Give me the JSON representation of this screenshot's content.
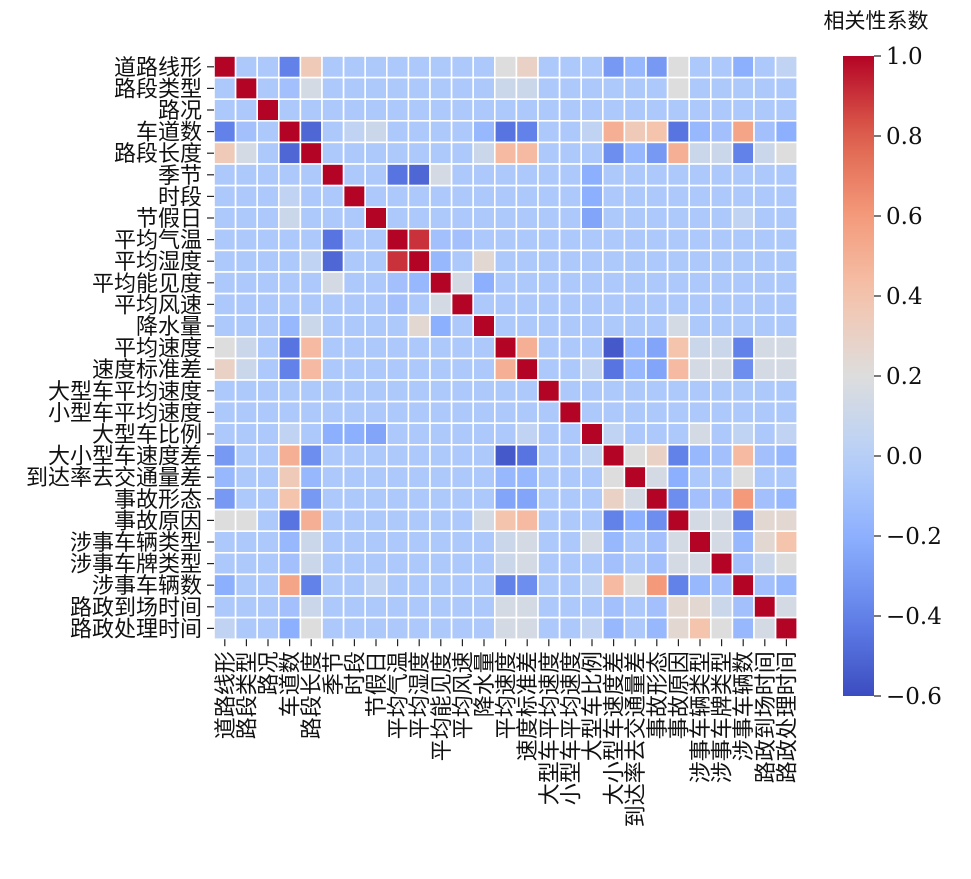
{
  "chart_data": {
    "type": "heatmap",
    "title": "",
    "colorbar_label": "相关性系数",
    "vmin": -0.6,
    "vmax": 1.0,
    "colorbar_ticks": [
      1.0,
      0.8,
      0.6,
      0.4,
      0.2,
      0.0,
      -0.2,
      -0.4,
      -0.6
    ],
    "colorbar_tick_labels": [
      "1.0",
      "0.8",
      "0.6",
      "0.4",
      "0.2",
      "0.0",
      "−0.2",
      "−0.4",
      "−0.6"
    ],
    "variables": [
      "道路线形",
      "路段类型",
      "路况",
      "车道数",
      "路段长度",
      "季节",
      "时段",
      "节假日",
      "平均气温",
      "平均湿度",
      "平均能见度",
      "平均风速",
      "降水量",
      "平均速度",
      "速度标准差",
      "大型车平均速度",
      "小型车平均速度",
      "大型车比例",
      "大小型车速度差",
      "到达率去交通量差",
      "事故形态",
      "事故原因",
      "涉事车辆类型",
      "涉事车牌类型",
      "涉事车辆数",
      "路政到场时间",
      "路政处理时间"
    ],
    "matrix": [
      [
        1.0,
        -0.05,
        -0.05,
        -0.4,
        0.35,
        -0.05,
        -0.05,
        -0.05,
        -0.05,
        -0.05,
        -0.05,
        -0.05,
        -0.05,
        0.2,
        0.3,
        -0.05,
        -0.05,
        -0.05,
        -0.3,
        -0.15,
        -0.3,
        0.2,
        -0.05,
        -0.05,
        -0.2,
        -0.05,
        0.05
      ],
      [
        -0.05,
        1.0,
        -0.05,
        -0.1,
        0.15,
        -0.05,
        -0.05,
        -0.05,
        -0.05,
        -0.05,
        -0.05,
        -0.05,
        -0.05,
        0.1,
        0.1,
        -0.05,
        -0.05,
        -0.05,
        -0.05,
        -0.05,
        -0.05,
        0.2,
        -0.05,
        -0.05,
        -0.05,
        -0.05,
        -0.05
      ],
      [
        -0.05,
        -0.05,
        1.0,
        -0.05,
        -0.05,
        -0.05,
        -0.05,
        -0.05,
        -0.05,
        -0.05,
        -0.05,
        -0.05,
        -0.05,
        -0.05,
        -0.05,
        -0.05,
        -0.05,
        -0.05,
        -0.05,
        -0.05,
        -0.05,
        -0.05,
        -0.05,
        -0.05,
        -0.05,
        -0.05,
        -0.05
      ],
      [
        -0.4,
        -0.1,
        -0.05,
        1.0,
        -0.5,
        -0.05,
        0.05,
        0.1,
        -0.05,
        -0.05,
        -0.05,
        -0.05,
        -0.15,
        -0.45,
        -0.4,
        -0.05,
        -0.05,
        0.05,
        0.5,
        0.35,
        0.4,
        -0.45,
        -0.15,
        -0.1,
        0.55,
        -0.1,
        -0.2
      ],
      [
        0.35,
        0.15,
        -0.05,
        -0.5,
        1.0,
        -0.05,
        -0.05,
        -0.05,
        -0.05,
        -0.05,
        -0.05,
        -0.05,
        0.1,
        0.45,
        0.45,
        -0.05,
        -0.05,
        -0.05,
        -0.35,
        -0.15,
        -0.3,
        0.5,
        0.1,
        0.1,
        -0.4,
        0.1,
        0.2
      ],
      [
        -0.05,
        -0.05,
        -0.05,
        -0.05,
        -0.05,
        1.0,
        -0.05,
        -0.05,
        -0.45,
        -0.5,
        0.15,
        -0.05,
        -0.05,
        -0.05,
        -0.05,
        -0.05,
        -0.05,
        -0.2,
        -0.05,
        -0.05,
        -0.05,
        -0.05,
        -0.05,
        -0.05,
        -0.05,
        -0.05,
        -0.05
      ],
      [
        -0.05,
        -0.05,
        -0.05,
        0.05,
        -0.05,
        -0.05,
        1.0,
        -0.05,
        -0.05,
        -0.05,
        -0.05,
        -0.05,
        -0.05,
        -0.05,
        -0.05,
        -0.05,
        -0.05,
        -0.2,
        -0.05,
        -0.05,
        -0.05,
        -0.05,
        -0.05,
        -0.05,
        -0.05,
        -0.05,
        -0.05
      ],
      [
        -0.05,
        -0.05,
        -0.05,
        0.1,
        -0.05,
        -0.05,
        -0.05,
        1.0,
        -0.05,
        -0.05,
        -0.05,
        -0.05,
        -0.05,
        -0.05,
        -0.05,
        -0.05,
        -0.05,
        -0.25,
        -0.05,
        -0.05,
        -0.05,
        -0.05,
        -0.05,
        -0.05,
        0.05,
        -0.05,
        -0.05
      ],
      [
        -0.05,
        -0.05,
        -0.05,
        -0.05,
        -0.05,
        -0.45,
        -0.05,
        -0.05,
        1.0,
        0.9,
        -0.1,
        -0.1,
        -0.05,
        -0.05,
        -0.05,
        -0.05,
        -0.05,
        -0.05,
        -0.05,
        -0.05,
        -0.05,
        -0.05,
        -0.05,
        -0.05,
        -0.05,
        -0.05,
        -0.05
      ],
      [
        -0.05,
        -0.05,
        -0.05,
        -0.05,
        0.05,
        -0.5,
        -0.05,
        -0.05,
        0.9,
        1.0,
        -0.15,
        -0.05,
        0.25,
        -0.05,
        -0.05,
        -0.05,
        -0.05,
        -0.05,
        -0.05,
        -0.05,
        -0.05,
        -0.05,
        -0.05,
        -0.05,
        -0.05,
        -0.05,
        -0.05
      ],
      [
        -0.05,
        -0.05,
        -0.05,
        -0.05,
        -0.05,
        0.15,
        -0.05,
        -0.05,
        -0.1,
        -0.15,
        1.0,
        0.15,
        -0.2,
        -0.05,
        -0.05,
        -0.05,
        -0.05,
        -0.05,
        -0.05,
        -0.05,
        -0.05,
        -0.05,
        -0.05,
        -0.05,
        -0.05,
        -0.05,
        -0.05
      ],
      [
        -0.05,
        -0.05,
        -0.05,
        -0.05,
        -0.05,
        -0.05,
        -0.05,
        -0.05,
        -0.1,
        -0.05,
        0.15,
        1.0,
        -0.05,
        -0.05,
        -0.05,
        -0.05,
        -0.05,
        -0.05,
        -0.05,
        -0.05,
        -0.05,
        -0.05,
        -0.05,
        -0.05,
        -0.05,
        -0.05,
        -0.05
      ],
      [
        -0.05,
        -0.05,
        -0.05,
        -0.15,
        0.1,
        -0.05,
        -0.05,
        -0.05,
        -0.05,
        0.25,
        -0.2,
        -0.05,
        1.0,
        -0.05,
        -0.05,
        -0.05,
        -0.05,
        -0.05,
        -0.05,
        -0.05,
        -0.05,
        0.15,
        -0.05,
        -0.05,
        -0.05,
        -0.05,
        -0.05
      ],
      [
        0.2,
        0.1,
        -0.05,
        -0.45,
        0.45,
        -0.05,
        -0.05,
        -0.05,
        -0.05,
        -0.05,
        -0.05,
        -0.05,
        -0.05,
        1.0,
        0.5,
        -0.05,
        -0.05,
        -0.05,
        -0.55,
        -0.15,
        -0.25,
        0.4,
        0.1,
        0.1,
        -0.4,
        0.15,
        0.15
      ],
      [
        0.3,
        0.1,
        -0.05,
        -0.4,
        0.45,
        -0.05,
        -0.05,
        -0.05,
        -0.05,
        -0.05,
        -0.05,
        -0.05,
        -0.05,
        0.5,
        1.0,
        -0.05,
        -0.05,
        0.05,
        -0.45,
        -0.15,
        -0.25,
        0.45,
        0.15,
        0.15,
        -0.35,
        0.15,
        0.15
      ],
      [
        -0.05,
        -0.05,
        -0.05,
        -0.05,
        -0.05,
        -0.05,
        -0.05,
        -0.05,
        -0.05,
        -0.05,
        -0.05,
        -0.05,
        -0.05,
        -0.05,
        -0.05,
        1.0,
        -0.05,
        -0.05,
        -0.05,
        -0.05,
        -0.05,
        -0.05,
        -0.05,
        -0.05,
        -0.05,
        -0.05,
        -0.05
      ],
      [
        -0.05,
        -0.05,
        -0.05,
        -0.05,
        -0.05,
        -0.05,
        -0.05,
        -0.05,
        -0.05,
        -0.05,
        -0.05,
        -0.05,
        -0.05,
        -0.05,
        -0.05,
        -0.05,
        1.0,
        -0.05,
        -0.05,
        -0.05,
        -0.05,
        -0.05,
        -0.05,
        -0.05,
        -0.05,
        -0.05,
        -0.05
      ],
      [
        -0.05,
        -0.05,
        -0.05,
        0.05,
        -0.05,
        -0.2,
        -0.2,
        -0.25,
        -0.05,
        -0.05,
        -0.05,
        -0.05,
        -0.05,
        -0.05,
        0.05,
        -0.05,
        -0.05,
        1.0,
        0.05,
        -0.05,
        -0.05,
        -0.05,
        0.15,
        -0.05,
        0.05,
        -0.05,
        0.05
      ],
      [
        -0.3,
        -0.05,
        -0.05,
        0.5,
        -0.35,
        -0.05,
        -0.05,
        -0.05,
        -0.05,
        -0.05,
        -0.05,
        -0.05,
        -0.05,
        -0.55,
        -0.45,
        -0.05,
        -0.05,
        0.05,
        1.0,
        0.2,
        0.3,
        -0.4,
        -0.15,
        -0.1,
        0.45,
        -0.1,
        -0.15
      ],
      [
        -0.15,
        -0.05,
        -0.05,
        0.35,
        -0.15,
        -0.05,
        -0.05,
        -0.05,
        -0.05,
        -0.05,
        -0.05,
        -0.05,
        -0.05,
        -0.15,
        -0.15,
        -0.05,
        -0.05,
        -0.05,
        0.2,
        1.0,
        0.15,
        -0.2,
        -0.05,
        -0.05,
        0.2,
        -0.05,
        -0.05
      ],
      [
        -0.3,
        -0.05,
        -0.05,
        0.4,
        -0.3,
        -0.05,
        -0.05,
        -0.05,
        -0.05,
        -0.05,
        -0.05,
        -0.05,
        -0.05,
        -0.25,
        -0.25,
        -0.05,
        -0.05,
        -0.05,
        0.3,
        0.15,
        1.0,
        -0.35,
        -0.1,
        -0.1,
        0.6,
        -0.1,
        -0.15
      ],
      [
        0.2,
        0.2,
        -0.05,
        -0.45,
        0.5,
        -0.05,
        -0.05,
        -0.05,
        -0.05,
        -0.05,
        -0.05,
        -0.05,
        0.15,
        0.4,
        0.45,
        -0.05,
        -0.05,
        -0.05,
        -0.4,
        -0.2,
        -0.35,
        1.0,
        0.15,
        0.15,
        -0.4,
        0.25,
        0.25
      ],
      [
        -0.05,
        -0.05,
        -0.05,
        -0.15,
        0.1,
        -0.05,
        -0.05,
        -0.05,
        -0.05,
        -0.05,
        -0.05,
        -0.05,
        -0.05,
        0.1,
        0.15,
        -0.05,
        -0.05,
        0.15,
        -0.15,
        -0.05,
        -0.1,
        0.15,
        1.0,
        0.15,
        -0.15,
        0.25,
        0.4
      ],
      [
        -0.05,
        -0.05,
        -0.05,
        -0.1,
        0.1,
        -0.05,
        -0.05,
        -0.05,
        -0.05,
        -0.05,
        -0.05,
        -0.05,
        -0.05,
        0.1,
        0.15,
        -0.05,
        -0.05,
        -0.05,
        -0.1,
        -0.05,
        -0.1,
        0.15,
        0.15,
        1.0,
        -0.1,
        0.1,
        0.2
      ],
      [
        -0.2,
        -0.05,
        -0.05,
        0.55,
        -0.4,
        -0.05,
        -0.05,
        0.05,
        -0.05,
        -0.05,
        -0.05,
        -0.05,
        -0.05,
        -0.4,
        -0.35,
        -0.05,
        -0.05,
        0.05,
        0.45,
        0.2,
        0.6,
        -0.4,
        -0.15,
        -0.1,
        1.0,
        -0.1,
        -0.15
      ],
      [
        -0.05,
        -0.05,
        -0.05,
        -0.1,
        0.1,
        -0.05,
        -0.05,
        -0.05,
        -0.05,
        -0.05,
        -0.05,
        -0.05,
        -0.05,
        0.15,
        0.15,
        -0.05,
        -0.05,
        -0.05,
        -0.1,
        -0.05,
        -0.1,
        0.25,
        0.25,
        0.1,
        -0.1,
        1.0,
        0.15
      ],
      [
        0.05,
        -0.05,
        -0.05,
        -0.2,
        0.2,
        -0.05,
        -0.05,
        -0.05,
        -0.05,
        -0.05,
        -0.05,
        -0.05,
        -0.05,
        0.15,
        0.15,
        -0.05,
        -0.05,
        0.05,
        -0.15,
        -0.05,
        -0.15,
        0.25,
        0.4,
        0.2,
        -0.15,
        0.15,
        1.0
      ]
    ]
  }
}
